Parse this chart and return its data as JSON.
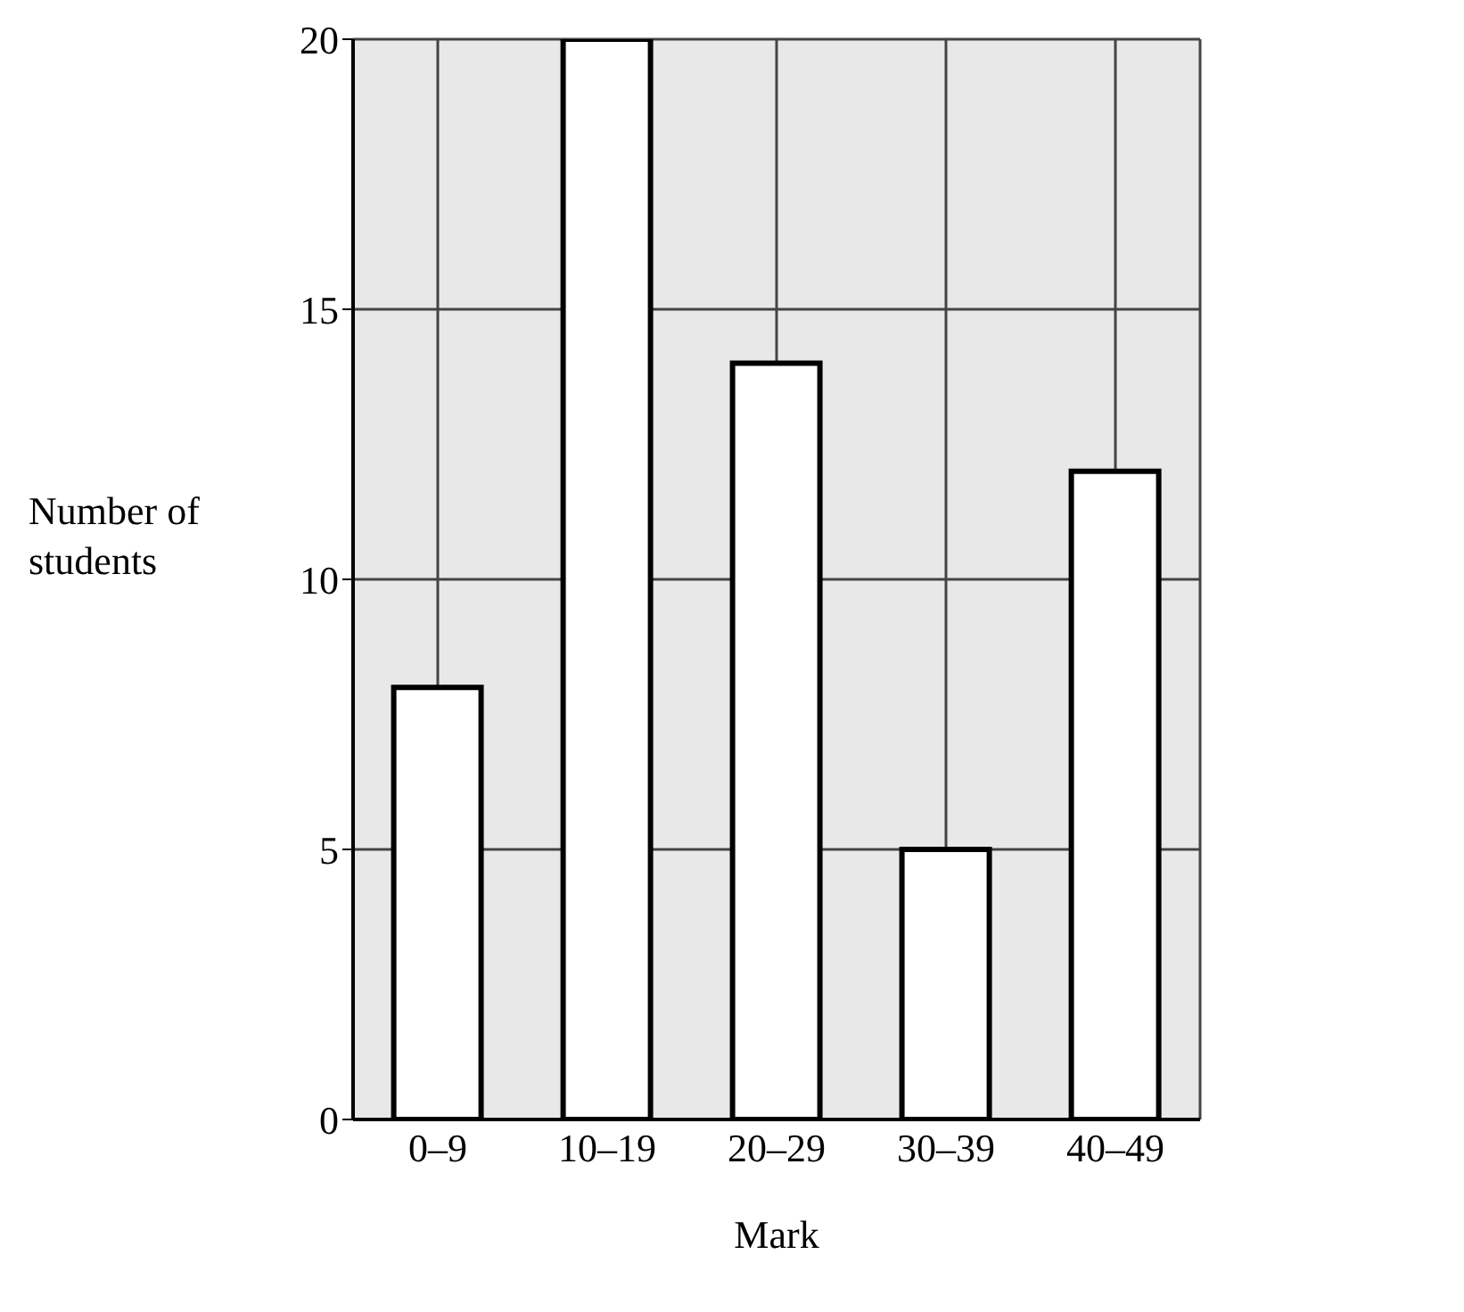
{
  "chart_data": {
    "type": "bar",
    "categories": [
      "0–9",
      "10–19",
      "20–29",
      "30–39",
      "40–49"
    ],
    "values": [
      8,
      20,
      14,
      5,
      12
    ],
    "color": "#ffffff",
    "xlabel": "Mark",
    "ylabel": "Number of students",
    "ylim": [
      0,
      20
    ],
    "yticks": [
      0,
      5,
      10,
      15,
      20
    ],
    "grid": true
  }
}
